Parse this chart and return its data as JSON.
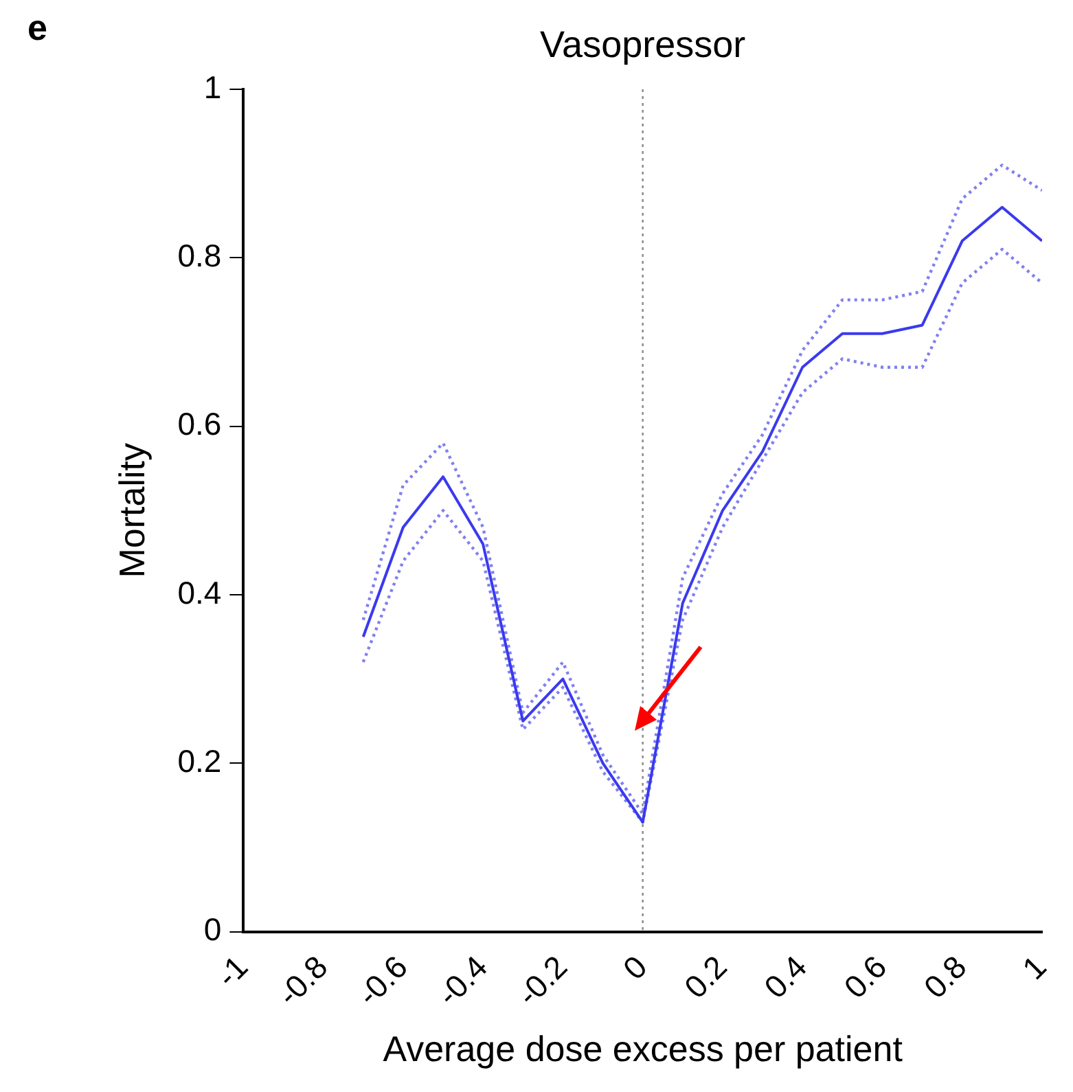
{
  "chart_data": {
    "type": "line",
    "title": "Vasopressor",
    "xlabel": "Average dose excess per patient",
    "ylabel": "Mortality",
    "annotations": [
      "e"
    ],
    "x": [
      -0.7,
      -0.6,
      -0.5,
      -0.4,
      -0.3,
      -0.2,
      -0.1,
      0,
      0.1,
      0.2,
      0.3,
      0.4,
      0.5,
      0.6,
      0.7,
      0.8,
      0.9,
      1
    ],
    "series": [
      {
        "color": "#3a3aee",
        "values": [
          0.35,
          0.48,
          0.54,
          0.46,
          0.25,
          0.3,
          0.2,
          0.13,
          0.39,
          0.5,
          0.57,
          0.67,
          0.71,
          0.71,
          0.72,
          0.82,
          0.86,
          0.82
        ]
      },
      {
        "color": "#8080f0",
        "line_style": "dotted",
        "values": [
          0.32,
          0.44,
          0.5,
          0.44,
          0.24,
          0.29,
          0.19,
          0.13,
          0.37,
          0.48,
          0.56,
          0.64,
          0.68,
          0.67,
          0.67,
          0.77,
          0.81,
          0.77
        ]
      },
      {
        "color": "#8080f0",
        "line_style": "dotted",
        "values": [
          0.37,
          0.53,
          0.58,
          0.48,
          0.26,
          0.32,
          0.21,
          0.14,
          0.42,
          0.52,
          0.59,
          0.69,
          0.75,
          0.75,
          0.76,
          0.87,
          0.91,
          0.88
        ]
      }
    ],
    "xlim": [
      -1,
      1
    ],
    "xticks": [
      -1,
      -0.8,
      -0.6,
      -0.4,
      -0.2,
      0,
      0.2,
      0.4,
      0.6,
      0.8,
      1
    ],
    "ylim": [
      0,
      1
    ],
    "yticks": [
      0,
      0.2,
      0.4,
      0.6,
      0.8,
      1
    ],
    "ref_lines": [
      {
        "axis": "x",
        "value": 0,
        "color": "#888888",
        "line_style": "dotted"
      }
    ],
    "grid": false,
    "legend": false,
    "marker": "none",
    "line_style": "solid"
  }
}
